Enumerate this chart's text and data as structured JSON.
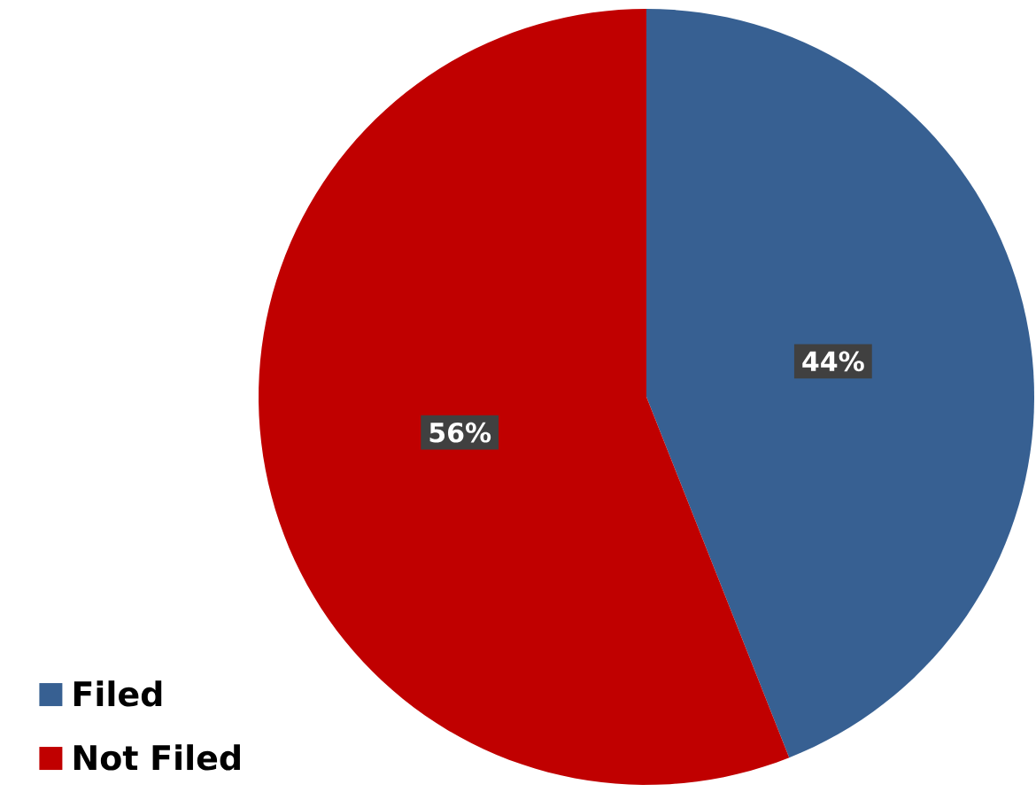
{
  "chart_data": {
    "type": "pie",
    "categories": [
      "Filed",
      "Not Filed"
    ],
    "values": [
      44,
      56
    ],
    "value_labels": [
      "44%",
      "56%"
    ],
    "colors": [
      "#376092",
      "#c00000"
    ],
    "legend": "bottom left"
  }
}
